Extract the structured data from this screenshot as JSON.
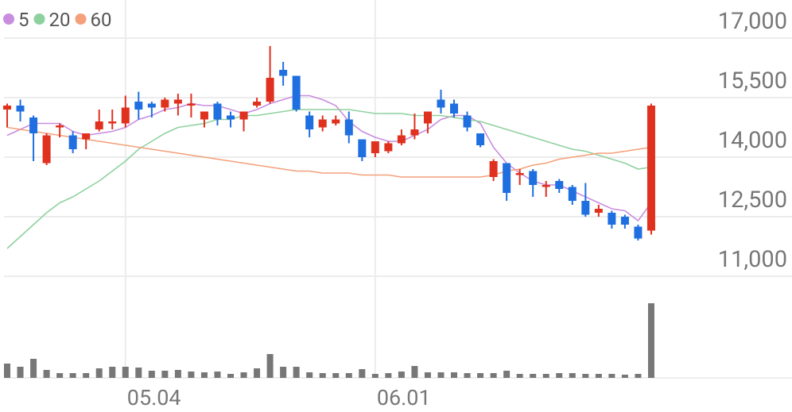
{
  "chart_data": {
    "type": "candlestick",
    "categories": [
      null,
      null,
      null,
      null,
      null,
      null,
      null,
      null,
      null,
      "05.04",
      null,
      null,
      null,
      null,
      null,
      null,
      null,
      null,
      null,
      null,
      null,
      null,
      null,
      null,
      null,
      null,
      null,
      null,
      "06.01",
      null,
      null,
      null,
      null,
      null,
      null,
      null,
      null,
      null,
      null,
      null,
      null,
      null,
      null,
      null,
      null,
      null,
      null,
      null,
      null,
      null
    ],
    "open": [
      15200,
      15300,
      15000,
      13850,
      14750,
      14550,
      14450,
      14700,
      14850,
      14850,
      15400,
      15350,
      15250,
      15350,
      15300,
      14950,
      15350,
      15050,
      14950,
      15300,
      15400,
      16200,
      16050,
      15050,
      14750,
      14850,
      14950,
      14450,
      14100,
      14150,
      14350,
      14550,
      14850,
      15450,
      15350,
      15050,
      14600,
      13500,
      13850,
      13550,
      13650,
      13250,
      13400,
      13250,
      12900,
      12600,
      12600,
      12500,
      12250,
      12150
    ],
    "high": [
      15350,
      15450,
      15050,
      14600,
      14850,
      14650,
      14600,
      15200,
      15200,
      15550,
      15650,
      15400,
      15500,
      15600,
      15600,
      15150,
      15400,
      15150,
      15150,
      15500,
      16800,
      16400,
      16050,
      15150,
      15050,
      15050,
      15150,
      14450,
      14400,
      14400,
      14700,
      15100,
      15150,
      15700,
      15450,
      15150,
      14600,
      13950,
      13850,
      13700,
      13700,
      13400,
      13450,
      13300,
      13350,
      12800,
      12650,
      12550,
      12300,
      15350
    ],
    "low": [
      14750,
      14900,
      13900,
      13800,
      14500,
      14100,
      14200,
      14650,
      14700,
      14750,
      14950,
      15000,
      15150,
      15050,
      15000,
      14750,
      14800,
      14750,
      14650,
      15250,
      15350,
      15800,
      15150,
      14500,
      14650,
      14800,
      14350,
      13900,
      14000,
      14100,
      14300,
      14450,
      14600,
      15100,
      15000,
      14650,
      14250,
      13400,
      12900,
      13300,
      13000,
      13000,
      13100,
      12800,
      12500,
      12500,
      12200,
      12200,
      11900,
      12050
    ],
    "close": [
      15300,
      15150,
      14600,
      14550,
      14800,
      14200,
      14600,
      14900,
      14900,
      15250,
      15200,
      15250,
      15450,
      15450,
      15350,
      15150,
      14950,
      14950,
      15150,
      15400,
      16000,
      16050,
      15200,
      14700,
      14950,
      14950,
      14550,
      14000,
      14400,
      14350,
      14550,
      14700,
      15150,
      15250,
      15100,
      14750,
      14300,
      13900,
      13100,
      13600,
      13300,
      13300,
      13200,
      12900,
      12550,
      12700,
      12300,
      12300,
      11950,
      15300
    ],
    "up_color": "#e0301e",
    "down_color": "#1f6fe0",
    "volume": [
      18,
      14,
      24,
      10,
      6,
      6,
      6,
      12,
      14,
      14,
      13,
      9,
      9,
      10,
      8,
      7,
      8,
      5,
      7,
      12,
      30,
      14,
      14,
      7,
      6,
      6,
      6,
      11,
      5,
      6,
      8,
      15,
      7,
      7,
      7,
      6,
      6,
      6,
      9,
      5,
      5,
      5,
      6,
      6,
      5,
      5,
      5,
      4,
      5,
      94
    ],
    "volume_color": "#777777",
    "volume_ylim": [
      0,
      100
    ],
    "series": [
      {
        "name": "5",
        "color": "#c98de0",
        "values": [
          14550,
          14700,
          14850,
          14850,
          14850,
          14650,
          14550,
          14600,
          14650,
          14750,
          14950,
          15050,
          15200,
          15250,
          15350,
          15300,
          15300,
          15200,
          15100,
          15200,
          15350,
          15450,
          15550,
          15550,
          15450,
          15300,
          14900,
          14650,
          14500,
          14400,
          14400,
          14550,
          14700,
          14950,
          15050,
          15050,
          14850,
          14250,
          13850,
          13600,
          13400,
          13300,
          13300,
          13150,
          13000,
          12850,
          12700,
          12650,
          12400,
          12850
        ]
      },
      {
        "name": "20",
        "color": "#8fd19e",
        "values": [
          11700,
          12000,
          12300,
          12600,
          12850,
          13000,
          13200,
          13400,
          13650,
          13900,
          14200,
          14400,
          14600,
          14750,
          14800,
          14850,
          14950,
          14950,
          15050,
          15050,
          15100,
          15150,
          15200,
          15200,
          15200,
          15200,
          15200,
          15150,
          15100,
          15100,
          15100,
          15050,
          15050,
          15050,
          15000,
          14950,
          14900,
          14800,
          14700,
          14600,
          14500,
          14400,
          14300,
          14200,
          14150,
          14050,
          13950,
          13850,
          13700,
          13750
        ]
      },
      {
        "name": "60",
        "color": "#f4a07a",
        "values": [
          14750,
          14700,
          14650,
          14600,
          14550,
          14500,
          14450,
          14400,
          14350,
          14300,
          14250,
          14200,
          14150,
          14100,
          14050,
          14000,
          13950,
          13900,
          13850,
          13800,
          13750,
          13700,
          13650,
          13650,
          13600,
          13600,
          13600,
          13550,
          13550,
          13550,
          13500,
          13500,
          13500,
          13500,
          13500,
          13500,
          13500,
          13550,
          13650,
          13700,
          13800,
          13850,
          13950,
          14000,
          14050,
          14100,
          14100,
          14150,
          14200,
          14250
        ]
      }
    ],
    "ylim": [
      11000,
      17000
    ],
    "yticks": [
      {
        "value": 11000,
        "label": "11,000"
      },
      {
        "value": 12500,
        "label": "12,500"
      },
      {
        "value": 14000,
        "label": "14,000"
      },
      {
        "value": 15500,
        "label": "15,500"
      },
      {
        "value": 17000,
        "label": "17,000"
      }
    ],
    "grid": true
  }
}
